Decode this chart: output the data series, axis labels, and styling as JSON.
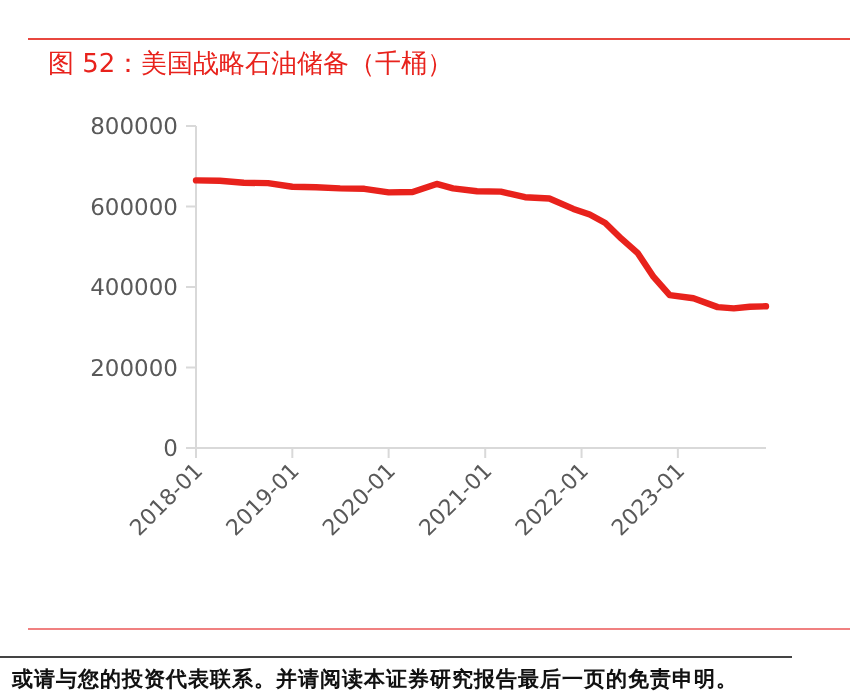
{
  "chart_data": {
    "type": "line",
    "title": "图 52：美国战略石油储备（千桶）",
    "annotations": [
      "或请与您的投资代表联系。并请阅读本证券研究报告最后一页的免责申明。"
    ],
    "x": [
      "2018-01",
      "2018-04",
      "2018-07",
      "2018-10",
      "2019-01",
      "2019-04",
      "2019-07",
      "2019-10",
      "2020-01",
      "2020-04",
      "2020-07",
      "2020-09",
      "2020-12",
      "2021-03",
      "2021-06",
      "2021-09",
      "2021-12",
      "2022-02",
      "2022-04",
      "2022-06",
      "2022-08",
      "2022-10",
      "2022-12",
      "2023-03",
      "2023-06",
      "2023-08",
      "2023-10",
      "2023-12"
    ],
    "series": [
      {
        "color": "#e8221c",
        "values": [
          665000,
          664000,
          659000,
          658000,
          649000,
          648000,
          645000,
          644000,
          635000,
          636000,
          656000,
          645000,
          638000,
          637000,
          623000,
          620000,
          594000,
          580000,
          559000,
          520000,
          485000,
          425000,
          380000,
          372000,
          350000,
          347000,
          351000,
          352000
        ]
      }
    ],
    "xlim": [
      "2018-01",
      "2023-12"
    ],
    "xticks": [
      "2018-01",
      "2019-01",
      "2020-01",
      "2021-01",
      "2022-01",
      "2023-01"
    ],
    "ylim": [
      0,
      800000
    ],
    "yticks": [
      0,
      200000,
      400000,
      600000,
      800000
    ],
    "grid": false,
    "marker": "none",
    "line_style": "solid"
  }
}
